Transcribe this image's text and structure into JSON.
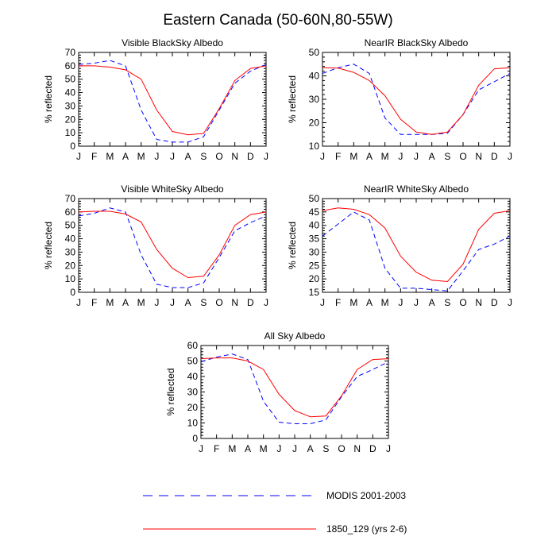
{
  "title": "Eastern Canada (50-60N,80-55W)",
  "colors": {
    "modis": "#0000ff",
    "model": "#ff0000"
  },
  "legend": [
    {
      "key": "modis",
      "label": "MODIS 2001-2003",
      "style": "dashed"
    },
    {
      "key": "model",
      "label": "1850_129 (yrs 2-6)",
      "style": "solid"
    }
  ],
  "chart_data": [
    {
      "type": "line",
      "title": "Visible BlackSky Albedo",
      "ylabel": "% reflected",
      "categories": [
        "J",
        "F",
        "M",
        "A",
        "M",
        "J",
        "J",
        "A",
        "S",
        "O",
        "N",
        "D",
        "J"
      ],
      "ylim": [
        0,
        70
      ],
      "yticks": [
        0,
        10,
        20,
        30,
        40,
        50,
        60,
        70
      ],
      "series": [
        {
          "name": "MODIS 2001-2003",
          "values": [
            61,
            62,
            64,
            60,
            27,
            5,
            3,
            3,
            7,
            27,
            47,
            56,
            61
          ]
        },
        {
          "name": "1850_129 (yrs 2-6)",
          "values": [
            60,
            60,
            59,
            57,
            50,
            27,
            11,
            8.5,
            9.5,
            28,
            49,
            58,
            60
          ]
        }
      ]
    },
    {
      "type": "line",
      "title": "NearIR BlackSky Albedo",
      "ylabel": "% reflected",
      "categories": [
        "J",
        "F",
        "M",
        "A",
        "M",
        "J",
        "J",
        "A",
        "S",
        "O",
        "N",
        "D",
        "J"
      ],
      "ylim": [
        10,
        50
      ],
      "yticks": [
        10,
        20,
        30,
        40,
        50
      ],
      "series": [
        {
          "name": "MODIS 2001-2003",
          "values": [
            41,
            43.5,
            45,
            41,
            22,
            15,
            15,
            15,
            15.5,
            23.5,
            34,
            37.5,
            41
          ]
        },
        {
          "name": "1850_129 (yrs 2-6)",
          "values": [
            43.5,
            43.3,
            41.5,
            38,
            31.5,
            21.5,
            16,
            15,
            16,
            23.5,
            36,
            43,
            43.5
          ]
        }
      ]
    },
    {
      "type": "line",
      "title": "Visible WhiteSky Albedo",
      "ylabel": "% reflected",
      "categories": [
        "J",
        "F",
        "M",
        "A",
        "M",
        "J",
        "J",
        "A",
        "S",
        "O",
        "N",
        "D",
        "J"
      ],
      "ylim": [
        0,
        70
      ],
      "yticks": [
        0,
        10,
        20,
        30,
        40,
        50,
        60,
        70
      ],
      "series": [
        {
          "name": "MODIS 2001-2003",
          "values": [
            57,
            59,
            63,
            60,
            28,
            6,
            3.5,
            3.5,
            7,
            26,
            46,
            52,
            57
          ]
        },
        {
          "name": "1850_129 (yrs 2-6)",
          "values": [
            60,
            60.5,
            60.5,
            58.5,
            52.5,
            32,
            18,
            11,
            12,
            28,
            50,
            58,
            60
          ]
        }
      ]
    },
    {
      "type": "line",
      "title": "NearIR WhiteSky Albedo",
      "ylabel": "% reflected",
      "categories": [
        "J",
        "F",
        "M",
        "A",
        "M",
        "J",
        "J",
        "A",
        "S",
        "O",
        "N",
        "D",
        "J"
      ],
      "ylim": [
        15,
        50
      ],
      "yticks": [
        15,
        20,
        25,
        30,
        35,
        40,
        45,
        50
      ],
      "series": [
        {
          "name": "MODIS 2001-2003",
          "values": [
            36,
            40.5,
            45,
            42,
            24,
            16.5,
            16.5,
            16,
            15.5,
            23,
            31,
            33,
            36
          ]
        },
        {
          "name": "1850_129 (yrs 2-6)",
          "values": [
            45.5,
            46.5,
            46,
            44,
            39,
            28.5,
            22.5,
            19.5,
            19,
            25.5,
            38.5,
            44.5,
            45.5
          ]
        }
      ]
    },
    {
      "type": "line",
      "title": "All Sky Albedo",
      "ylabel": "% reflected",
      "categories": [
        "J",
        "F",
        "M",
        "A",
        "M",
        "J",
        "J",
        "A",
        "S",
        "O",
        "N",
        "D",
        "J"
      ],
      "ylim": [
        0,
        60
      ],
      "yticks": [
        0,
        10,
        20,
        30,
        40,
        50,
        60
      ],
      "series": [
        {
          "name": "MODIS 2001-2003",
          "values": [
            49.5,
            52.5,
            54.5,
            51,
            24,
            10.5,
            9.5,
            9.5,
            12,
            27,
            40,
            44.5,
            49.5
          ]
        },
        {
          "name": "1850_129 (yrs 2-6)",
          "values": [
            51.5,
            52,
            52,
            50,
            44.5,
            28.5,
            18,
            14,
            14.5,
            27.5,
            44.5,
            51,
            51.5
          ]
        }
      ]
    }
  ]
}
